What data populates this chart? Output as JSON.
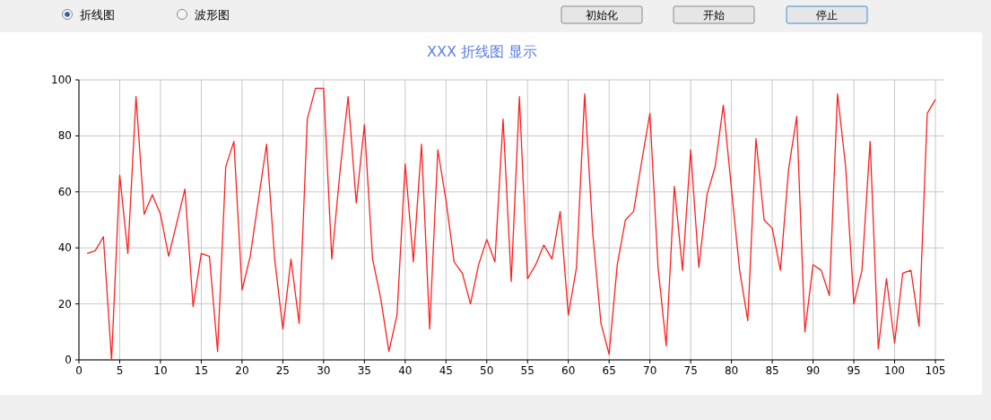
{
  "chart_data": {
    "type": "line",
    "title": "XXX 折线图 显示",
    "annotations": [
      "折线图",
      "波形图",
      "初始化",
      "开始",
      "停止"
    ],
    "x": [
      1,
      2,
      3,
      4,
      5,
      6,
      7,
      8,
      9,
      10,
      11,
      12,
      13,
      14,
      15,
      16,
      17,
      18,
      19,
      20,
      21,
      22,
      23,
      24,
      25,
      26,
      27,
      28,
      29,
      30,
      31,
      32,
      33,
      34,
      35,
      36,
      37,
      38,
      39,
      40,
      41,
      42,
      43,
      44,
      45,
      46,
      47,
      48,
      49,
      50,
      51,
      52,
      53,
      54,
      55,
      56,
      57,
      58,
      59,
      60,
      61,
      62,
      63,
      64,
      65,
      66,
      67,
      68,
      69,
      70,
      71,
      72,
      73,
      74,
      75,
      76,
      77,
      78,
      79,
      80,
      81,
      82,
      83,
      84,
      85,
      86,
      87,
      88,
      89,
      90,
      91,
      92,
      93,
      94,
      95,
      96,
      97,
      98,
      99,
      100,
      101,
      102,
      103,
      104,
      105
    ],
    "series": [
      {
        "color": "#ff2020",
        "values": [
          38,
          39,
          44,
          0,
          66,
          38,
          94,
          52,
          59,
          52,
          37,
          49,
          61,
          19,
          38,
          37,
          3,
          69,
          78,
          25,
          37,
          57,
          77,
          36,
          11,
          36,
          13,
          86,
          97,
          97,
          36,
          67,
          94,
          56,
          84,
          36,
          22,
          3,
          16,
          70,
          35,
          77,
          11,
          75,
          57,
          35,
          31,
          20,
          34,
          43,
          35,
          86,
          28,
          94,
          29,
          34,
          41,
          36,
          53,
          16,
          33,
          95,
          45,
          13,
          2,
          34,
          50,
          53,
          71,
          88,
          33,
          5,
          62,
          32,
          75,
          33,
          59,
          69,
          91,
          61,
          32,
          14,
          79,
          50,
          47,
          32,
          68,
          87,
          10,
          34,
          32,
          23,
          95,
          69,
          20,
          32,
          78,
          4,
          29,
          6,
          31,
          32,
          12,
          88,
          93
        ]
      }
    ],
    "xlim": [
      0,
      105
    ],
    "xticks": [
      0,
      5,
      10,
      15,
      20,
      25,
      30,
      35,
      40,
      45,
      50,
      55,
      60,
      65,
      70,
      75,
      80,
      85,
      90,
      95,
      100,
      105
    ],
    "ylim": [
      0,
      100
    ],
    "yticks": [
      0,
      20,
      40,
      60,
      80,
      100
    ],
    "grid": true,
    "marker": "none",
    "line_style": "solid"
  }
}
